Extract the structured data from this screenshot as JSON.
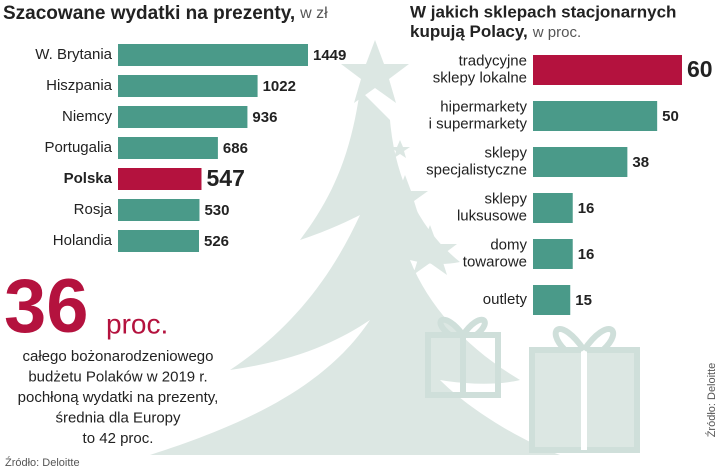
{
  "chart_data": [
    {
      "type": "bar",
      "orientation": "horizontal",
      "title": [
        "Szacowane wydatki na prezenty,"
      ],
      "subtitle": "w zł",
      "categories": [
        [
          "W. Brytania"
        ],
        [
          "Hiszpania"
        ],
        [
          "Niemcy"
        ],
        [
          "Portugalia"
        ],
        [
          "Polska"
        ],
        [
          "Rosja"
        ],
        [
          "Holandia"
        ]
      ],
      "values": [
        1449,
        1022,
        936,
        686,
        547,
        530,
        526
      ],
      "colors": [
        "#4a9a89",
        "#4a9a89",
        "#4a9a89",
        "#4a9a89",
        "#b4123e",
        "#4a9a89",
        "#4a9a89"
      ],
      "xlim": [
        -160,
        1449
      ]
    },
    {
      "type": "bar",
      "orientation": "horizontal",
      "title": [
        "W jakich sklepach stacjonarnych",
        "kupują Polacy,"
      ],
      "subtitle": "w proc.",
      "categories": [
        [
          "tradycyjne",
          "sklepy lokalne"
        ],
        [
          "hipermarkety",
          "i supermarkety"
        ],
        [
          "sklepy",
          "specjalistyczne"
        ],
        [
          "sklepy",
          "luksusowe"
        ],
        [
          "domy",
          "towarowe"
        ],
        [
          "outlety"
        ]
      ],
      "values": [
        60,
        50,
        38,
        16,
        16,
        15
      ],
      "colors": [
        "#b4123e",
        "#4a9a89",
        "#4a9a89",
        "#4a9a89",
        "#4a9a89",
        "#4a9a89"
      ],
      "xlim": [
        0,
        60
      ]
    }
  ],
  "highlight": {
    "number": "36",
    "unit": "proc.",
    "text": [
      "całego bożonarodzeniowego",
      "budżetu Polaków w 2019 r.",
      "pochłoną wydatki na prezenty,",
      "średnia dla Europy",
      "to 42 proc."
    ]
  },
  "source_left": "Źródło: Deloitte",
  "source_right": "Źródło: Deloitte"
}
